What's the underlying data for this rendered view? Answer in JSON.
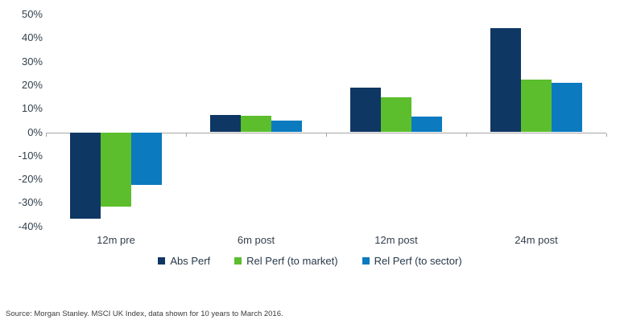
{
  "chart_data": {
    "type": "bar",
    "categories": [
      "12m pre",
      "6m post",
      "12m post",
      "24m post"
    ],
    "series": [
      {
        "name": "Abs Perf",
        "color": "#0f3764",
        "values": [
          -36.5,
          7.5,
          19,
          44
        ]
      },
      {
        "name": "Rel Perf (to market)",
        "color": "#5cbe2d",
        "values": [
          -31.5,
          7,
          15,
          22.5
        ]
      },
      {
        "name": "Rel Perf (to sector)",
        "color": "#0b7abf",
        "values": [
          -22,
          5,
          6.5,
          21
        ]
      }
    ],
    "title": "",
    "xlabel": "",
    "ylabel": "",
    "ylim": [
      -40,
      50
    ],
    "ytick_step": 10,
    "ytick_format": "percent",
    "grid": false,
    "legend_position": "bottom",
    "axis_color": "#a6a6a6",
    "text_color": "#33404d"
  },
  "source_note": "Source: Morgan Stanley. MSCI UK Index, data shown for 10 years to March 2016."
}
